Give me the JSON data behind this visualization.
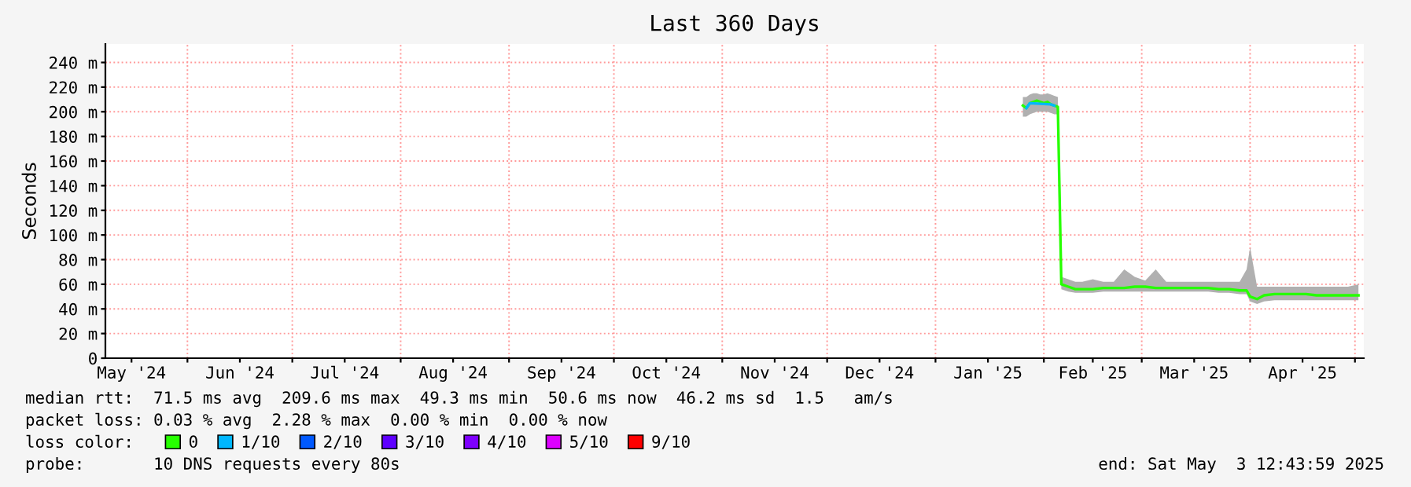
{
  "chart_data": {
    "type": "line",
    "title": "Last 360 Days",
    "ylabel": "Seconds",
    "xlim": [
      "2024-05-08T12:43",
      "2025-05-03T12:43"
    ],
    "ylim": [
      0,
      255
    ],
    "yticks": [
      0,
      {
        "value": 20,
        "label": "20 m"
      },
      {
        "value": 40,
        "label": "40 m"
      },
      {
        "value": 60,
        "label": "60 m"
      },
      {
        "value": 80,
        "label": "80 m"
      },
      {
        "value": 100,
        "label": "100 m"
      },
      {
        "value": 120,
        "label": "120 m"
      },
      {
        "value": 140,
        "label": "140 m"
      },
      {
        "value": 160,
        "label": "160 m"
      },
      {
        "value": 180,
        "label": "180 m"
      },
      {
        "value": 200,
        "label": "200 m"
      },
      {
        "value": 220,
        "label": "220 m"
      },
      {
        "value": 240,
        "label": "240 m"
      }
    ],
    "xticks": [
      {
        "value": "2024-05-16",
        "label": "May '24"
      },
      {
        "value": "2024-06-01",
        "label": null
      },
      {
        "value": "2024-06-16",
        "label": "Jun '24"
      },
      {
        "value": "2024-07-01",
        "label": null
      },
      {
        "value": "2024-07-16",
        "label": "Jul '24"
      },
      {
        "value": "2024-08-01",
        "label": null
      },
      {
        "value": "2024-08-16",
        "label": "Aug '24"
      },
      {
        "value": "2024-09-01",
        "label": null
      },
      {
        "value": "2024-09-16",
        "label": "Sep '24"
      },
      {
        "value": "2024-10-01",
        "label": null
      },
      {
        "value": "2024-10-16",
        "label": "Oct '24"
      },
      {
        "value": "2024-11-01",
        "label": null
      },
      {
        "value": "2024-11-16",
        "label": "Nov '24"
      },
      {
        "value": "2024-12-01",
        "label": null
      },
      {
        "value": "2024-12-16",
        "label": "Dec '24"
      },
      {
        "value": "2025-01-01",
        "label": null
      },
      {
        "value": "2025-01-16",
        "label": "Jan '25"
      },
      {
        "value": "2025-02-01",
        "label": null
      },
      {
        "value": "2025-02-15",
        "label": "Feb '25"
      },
      {
        "value": "2025-03-01",
        "label": null
      },
      {
        "value": "2025-03-16",
        "label": "Mar '25"
      },
      {
        "value": "2025-04-01",
        "label": null
      },
      {
        "value": "2025-04-16",
        "label": "Apr '25"
      },
      {
        "value": "2025-05-01",
        "label": null
      }
    ],
    "grid": true,
    "legend": "bottom",
    "legend_title": "loss color:",
    "series": [
      {
        "name": "0",
        "color": "#26ff00",
        "x": [
          "2025-01-26",
          "2025-01-27",
          "2025-01-28",
          "2025-01-29",
          "2025-01-30",
          "2025-01-31",
          "2025-02-01",
          "2025-02-02",
          "2025-02-03",
          "2025-02-04",
          "2025-02-05",
          "2025-02-06",
          "2025-02-08",
          "2025-02-10",
          "2025-02-12",
          "2025-02-15",
          "2025-02-18",
          "2025-02-21",
          "2025-02-24",
          "2025-02-27",
          "2025-03-02",
          "2025-03-05",
          "2025-03-08",
          "2025-03-11",
          "2025-03-14",
          "2025-03-17",
          "2025-03-20",
          "2025-03-23",
          "2025-03-26",
          "2025-03-29",
          "2025-03-31",
          "2025-04-01",
          "2025-04-03",
          "2025-04-05",
          "2025-04-08",
          "2025-04-11",
          "2025-04-14",
          "2025-04-17",
          "2025-04-20",
          "2025-04-23",
          "2025-04-26",
          "2025-04-29",
          "2025-05-02"
        ],
        "values": [
          205,
          203,
          207,
          208,
          209,
          208,
          207,
          208,
          206,
          205,
          204,
          60,
          58,
          56,
          56,
          56,
          57,
          57,
          57,
          58,
          58,
          57,
          57,
          57,
          57,
          57,
          57,
          56,
          56,
          55,
          55,
          50,
          48,
          51,
          52,
          52,
          52,
          52,
          51,
          51,
          51,
          51,
          51
        ],
        "lower": [
          196,
          196,
          198,
          199,
          200,
          200,
          200,
          200,
          199,
          198,
          198,
          56,
          54,
          53,
          53,
          53,
          54,
          54,
          54,
          54,
          54,
          54,
          54,
          54,
          54,
          54,
          54,
          53,
          53,
          52,
          52,
          46,
          44,
          46,
          47,
          47,
          47,
          47,
          47,
          47,
          47,
          47,
          47
        ],
        "upper": [
          212,
          212,
          214,
          215,
          215,
          214,
          214,
          215,
          214,
          213,
          212,
          66,
          64,
          62,
          62,
          64,
          62,
          62,
          72,
          66,
          63,
          72,
          62,
          62,
          62,
          62,
          62,
          62,
          62,
          62,
          72,
          90,
          58,
          58,
          58,
          58,
          58,
          58,
          58,
          58,
          58,
          58,
          60
        ]
      },
      {
        "name": "1/10",
        "color": "#00b7ff",
        "x": [
          "2025-01-27",
          "2025-01-28",
          "2025-02-03",
          "2025-02-04"
        ],
        "values": [
          203,
          207,
          206,
          205
        ]
      },
      {
        "name": "2/10",
        "color": "#0059ff"
      },
      {
        "name": "3/10",
        "color": "#5e00ff"
      },
      {
        "name": "4/10",
        "color": "#7e00ff"
      },
      {
        "name": "5/10",
        "color": "#dd00ff"
      },
      {
        "name": "9/10",
        "color": "#ff0000"
      }
    ],
    "annotations": [
      "median rtt:  71.5 ms avg  209.6 ms max  49.3 ms min  50.6 ms now  46.2 ms sd  1.5   am/s",
      "packet loss: 0.03 % avg  2.28 % max  0.00 % min  0.00 % now",
      "probe:       10 DNS requests every 80s",
      "end: Sat May  3 12:43:59 2025"
    ]
  }
}
